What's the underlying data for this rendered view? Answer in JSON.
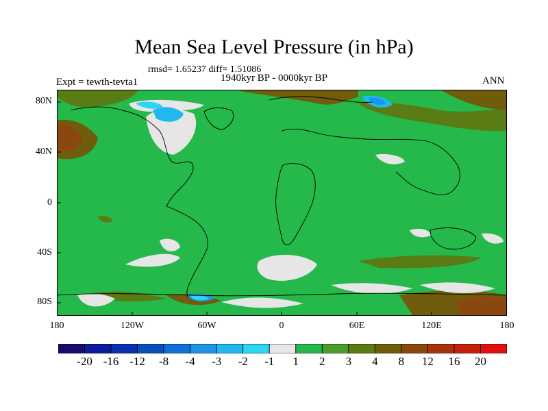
{
  "title": "Mean Sea Level Pressure (in hPa)",
  "stats_line": "rmsd= 1.65237 diff= 1.51086",
  "period_line": "1940kyr BP - 0000kyr BP",
  "experiment_line": "Expt = tewth-tevta1",
  "season_label": "ANN",
  "lat_labels": [
    "80N",
    "40N",
    "0",
    "40S",
    "80S"
  ],
  "lon_labels": [
    "180",
    "120W",
    "60W",
    "0",
    "60E",
    "120E",
    "180"
  ],
  "colorbar": {
    "labels": [
      "-20",
      "-16",
      "-12",
      "-8",
      "-4",
      "-3",
      "-2",
      "-1",
      "1",
      "2",
      "3",
      "4",
      "8",
      "12",
      "16",
      "20"
    ],
    "colors": [
      "#1a0a6e",
      "#0d1c9c",
      "#0a2fb3",
      "#0b4fbf",
      "#1070d6",
      "#1c95e6",
      "#20b8ee",
      "#2ad6f0",
      "#e6e6e6",
      "#25b84a",
      "#4a9e2c",
      "#5a7c14",
      "#6f5c0c",
      "#8a4810",
      "#a8320c",
      "#c4200c",
      "#e01010"
    ]
  }
}
